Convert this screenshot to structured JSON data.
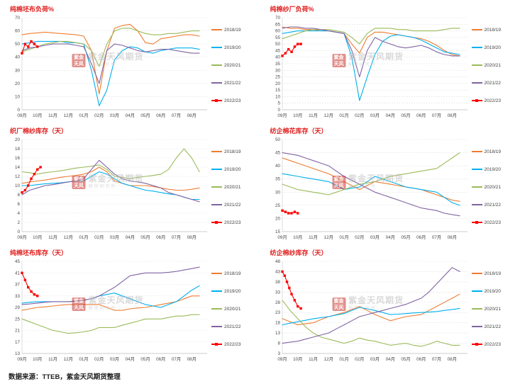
{
  "page": {
    "source_note": "数据来源：TTEB，紫金天风期货整理"
  },
  "watermark": {
    "seal_lines": [
      "紫金",
      "天风"
    ],
    "brand": "紫金天风期货",
    "sub": "期货研究所",
    "seal_color": "#c9342c",
    "text_color": "#bcbcbc"
  },
  "palette": {
    "2018/19": "#ED7D31",
    "2019/20": "#00B0F0",
    "2020/21": "#9BBB59",
    "2021/22": "#8064A2",
    "2022/23": "#FF0000"
  },
  "months": [
    "09月",
    "10月",
    "11月",
    "12月",
    "01月",
    "02月",
    "03月",
    "04月",
    "05月",
    "06月",
    "07月",
    "08月"
  ],
  "chart_data": [
    {
      "type": "line",
      "title": "纯棉坯布负荷%",
      "ylim": [
        0,
        70
      ],
      "ystep": 10,
      "xlim": [
        0,
        12
      ],
      "grid": "horizontal-dotted",
      "legend_position": "right",
      "series": [
        {
          "name": "2018/19",
          "values": [
            57,
            58,
            58.5,
            59,
            58.5,
            58,
            57.5,
            57,
            56,
            45,
            12,
            45,
            62,
            64,
            65,
            60,
            51,
            50,
            54,
            55,
            56,
            57,
            57,
            56
          ]
        },
        {
          "name": "2019/20",
          "values": [
            50,
            51,
            52,
            52,
            52,
            52,
            51,
            51,
            50,
            30,
            3,
            15,
            38,
            45,
            48,
            47,
            44,
            43,
            45,
            46,
            47,
            47,
            47,
            46
          ]
        },
        {
          "name": "2020/21",
          "values": [
            44,
            46,
            48,
            50,
            51,
            52,
            52,
            51,
            50,
            45,
            33,
            50,
            60,
            62,
            62,
            60,
            58,
            57,
            57,
            58,
            58,
            59,
            60,
            60
          ]
        },
        {
          "name": "2021/22",
          "values": [
            45,
            47,
            48,
            49,
            50,
            50,
            50,
            49,
            48,
            35,
            20,
            45,
            50,
            49,
            47,
            45,
            44,
            45,
            46,
            46,
            45,
            44,
            43,
            43
          ]
        },
        {
          "name": "2022/23",
          "marker": true,
          "x": [
            0,
            0.2,
            0.4,
            0.6,
            0.8,
            1.0
          ],
          "values": [
            43,
            50,
            48,
            52,
            50,
            48
          ]
        }
      ]
    },
    {
      "type": "line",
      "title": "纯棉纱厂负荷%",
      "ylim": [
        0,
        70
      ],
      "ystep": 5,
      "xlim": [
        0,
        12
      ],
      "grid": "horizontal-dotted",
      "legend_position": "right",
      "series": [
        {
          "name": "2018/19",
          "values": [
            63,
            62,
            62,
            61,
            61,
            60,
            60,
            59,
            58,
            50,
            43,
            55,
            59,
            59,
            58,
            57,
            56,
            55,
            54,
            52,
            49,
            45,
            42,
            41
          ]
        },
        {
          "name": "2019/20",
          "values": [
            58,
            59,
            60,
            60,
            60,
            60,
            60,
            59,
            58,
            40,
            7,
            25,
            42,
            52,
            56,
            57,
            56,
            55,
            53,
            50,
            47,
            44,
            43,
            42
          ]
        },
        {
          "name": "2020/21",
          "values": [
            54,
            56,
            58,
            60,
            61,
            61,
            61,
            60,
            59,
            55,
            50,
            58,
            62,
            62,
            62,
            61,
            61,
            60,
            60,
            60,
            60,
            61,
            62,
            62
          ]
        },
        {
          "name": "2021/22",
          "values": [
            62,
            63,
            63,
            62,
            62,
            61,
            60,
            59,
            58,
            45,
            25,
            45,
            55,
            52,
            50,
            48,
            47,
            48,
            49,
            47,
            44,
            42,
            41,
            41
          ]
        },
        {
          "name": "2022/23",
          "marker": true,
          "x": [
            0,
            0.2,
            0.4,
            0.6,
            0.8,
            1.0,
            1.2
          ],
          "values": [
            41,
            43,
            46,
            44,
            48,
            50,
            50
          ]
        }
      ]
    },
    {
      "type": "line",
      "title": "织厂棉纱库存（天）",
      "ylim": [
        0,
        20
      ],
      "ystep": 2,
      "xlim": [
        0,
        12
      ],
      "grid": "horizontal-dotted",
      "legend_position": "right",
      "series": [
        {
          "name": "2018/19",
          "values": [
            10.5,
            10.8,
            11,
            11.2,
            11.5,
            11.8,
            12,
            12.2,
            12.5,
            13,
            14,
            13,
            11,
            10.5,
            10,
            10,
            10,
            9.8,
            9.5,
            9.2,
            9,
            9,
            9.2,
            9.5
          ]
        },
        {
          "name": "2019/20",
          "values": [
            10,
            10,
            10.2,
            10.4,
            10.5,
            10.6,
            10.8,
            11,
            11,
            12,
            13,
            12.5,
            11.5,
            10.5,
            10,
            9.5,
            9,
            8.8,
            8.5,
            8.2,
            8,
            7.5,
            7,
            7
          ]
        },
        {
          "name": "2020/21",
          "values": [
            13,
            12.8,
            12.5,
            12.8,
            13,
            13.2,
            13.5,
            13.8,
            14,
            14.2,
            14.5,
            13.5,
            12,
            11.8,
            11.5,
            11.8,
            12,
            12.2,
            12.5,
            13.5,
            16,
            18,
            16,
            13
          ]
        },
        {
          "name": "2021/22",
          "values": [
            8,
            9,
            9.5,
            10,
            10.2,
            10.5,
            10.8,
            11,
            11.5,
            13.5,
            15.5,
            14,
            12.5,
            11.5,
            11,
            10.8,
            10.5,
            10,
            9.5,
            8.5,
            8,
            7.5,
            7,
            6.5
          ]
        },
        {
          "name": "2022/23",
          "marker": true,
          "x": [
            0,
            0.2,
            0.4,
            0.6,
            0.8,
            1.0,
            1.2
          ],
          "values": [
            8.5,
            9,
            10,
            11.5,
            12.5,
            13.5,
            14
          ]
        }
      ]
    },
    {
      "type": "line",
      "title": "纺企棉花库存（天）",
      "ylim": [
        15,
        50
      ],
      "ystep": 5,
      "xlim": [
        0,
        12
      ],
      "grid": "horizontal-dotted",
      "legend_position": "right",
      "series": [
        {
          "name": "2018/19",
          "values": [
            43,
            42,
            41,
            40,
            39,
            38,
            37,
            35.5,
            34,
            32.5,
            31,
            32.5,
            34,
            33.5,
            33,
            32.5,
            32,
            31.5,
            31,
            30,
            29,
            28,
            27,
            26.5
          ]
        },
        {
          "name": "2019/20",
          "values": [
            37,
            36.5,
            36,
            35.5,
            35,
            34.5,
            34,
            32.5,
            31,
            31.5,
            32,
            34,
            36,
            35,
            34,
            33,
            32,
            31.5,
            31,
            30.5,
            30,
            28,
            26,
            25
          ]
        },
        {
          "name": "2020/21",
          "values": [
            33,
            32,
            31,
            30.5,
            30,
            29.5,
            29,
            30,
            31,
            32,
            33,
            33.5,
            34,
            35,
            36,
            36.5,
            37,
            37.5,
            38,
            38.5,
            39,
            41,
            43,
            45
          ]
        },
        {
          "name": "2021/22",
          "values": [
            45,
            44.5,
            44,
            43,
            42,
            41,
            40,
            38,
            36,
            34.5,
            33,
            31.5,
            30,
            29,
            28,
            27,
            26,
            25,
            24,
            23.5,
            23,
            22,
            21.5,
            21
          ]
        },
        {
          "name": "2022/23",
          "marker": true,
          "x": [
            0,
            0.2,
            0.4,
            0.6,
            0.8,
            1.0
          ],
          "values": [
            23,
            22.5,
            22,
            22,
            22.5,
            22
          ]
        }
      ]
    },
    {
      "type": "line",
      "title": "纯棉坯布库存（天）",
      "ylim": [
        13,
        45
      ],
      "ystep": 4,
      "xlim": [
        0,
        12
      ],
      "grid": "horizontal-dotted",
      "legend_position": "right",
      "series": [
        {
          "name": "2018/19",
          "values": [
            28,
            28.5,
            29,
            29.2,
            29.5,
            29.8,
            30,
            30,
            30,
            30,
            30,
            29,
            28,
            28,
            28.5,
            28.8,
            29,
            29.5,
            30,
            30.5,
            31,
            32,
            33,
            33
          ]
        },
        {
          "name": "2019/20",
          "values": [
            30.5,
            30.8,
            31,
            31,
            31,
            31,
            31,
            31.2,
            31.5,
            32,
            33,
            33.5,
            34,
            33,
            32,
            31,
            30,
            29.5,
            29,
            30,
            31,
            33,
            35,
            36.5
          ]
        },
        {
          "name": "2020/21",
          "values": [
            25,
            24,
            23,
            22,
            21,
            20.5,
            20,
            20.2,
            20.5,
            21,
            22,
            22,
            22,
            22.8,
            23.5,
            24.2,
            25,
            25,
            25,
            25.5,
            26,
            26,
            26.5,
            26.5
          ]
        },
        {
          "name": "2021/22",
          "values": [
            30,
            30.2,
            30.5,
            30.8,
            31,
            31,
            31,
            31.2,
            31.5,
            32,
            33,
            34.5,
            36,
            38,
            40,
            40.5,
            41,
            41,
            41,
            41.2,
            41.5,
            42,
            42.5,
            43
          ]
        },
        {
          "name": "2022/23",
          "marker": true,
          "x": [
            0,
            0.2,
            0.4,
            0.6,
            0.8,
            1.0
          ],
          "values": [
            41,
            38.5,
            36,
            34.5,
            33.5,
            33
          ]
        }
      ]
    },
    {
      "type": "line",
      "title": "纺企棉纱库存（天）",
      "ylim": [
        3,
        48
      ],
      "ystep": 5,
      "xlim": [
        0,
        12
      ],
      "grid": "horizontal-dotted",
      "legend_position": "right",
      "series": [
        {
          "name": "2018/19",
          "values": [
            20,
            18.5,
            17,
            17.5,
            18,
            19.5,
            21,
            22,
            23,
            24.5,
            26,
            24,
            22,
            20.5,
            19,
            20,
            21,
            21.5,
            22,
            24,
            26,
            28,
            30,
            32
          ]
        },
        {
          "name": "2019/20",
          "values": [
            17,
            17.8,
            18.5,
            19.2,
            20,
            20.5,
            21,
            21.8,
            22.5,
            24,
            25.5,
            24.8,
            24,
            23,
            22,
            22.2,
            22.5,
            22.8,
            23,
            23.2,
            23.5,
            24,
            24.5,
            25
          ]
        },
        {
          "name": "2020/21",
          "values": [
            29,
            24,
            20,
            16,
            13,
            11,
            10,
            9,
            8,
            9,
            10.5,
            9.5,
            9,
            8,
            7,
            7.5,
            8,
            7,
            6.5,
            7.5,
            9,
            8,
            7,
            7
          ]
        },
        {
          "name": "2021/22",
          "values": [
            8,
            8.5,
            9,
            10,
            11,
            12,
            13,
            15,
            17,
            19,
            21,
            22,
            23,
            24,
            25,
            26,
            27,
            28.5,
            30,
            33,
            37,
            41,
            45,
            43
          ]
        },
        {
          "name": "2022/23",
          "marker": true,
          "x": [
            0,
            0.15,
            0.3,
            0.45,
            0.6,
            0.8,
            1.0,
            1.2
          ],
          "values": [
            43,
            41,
            38,
            35,
            32,
            29,
            26,
            25
          ]
        }
      ]
    }
  ]
}
